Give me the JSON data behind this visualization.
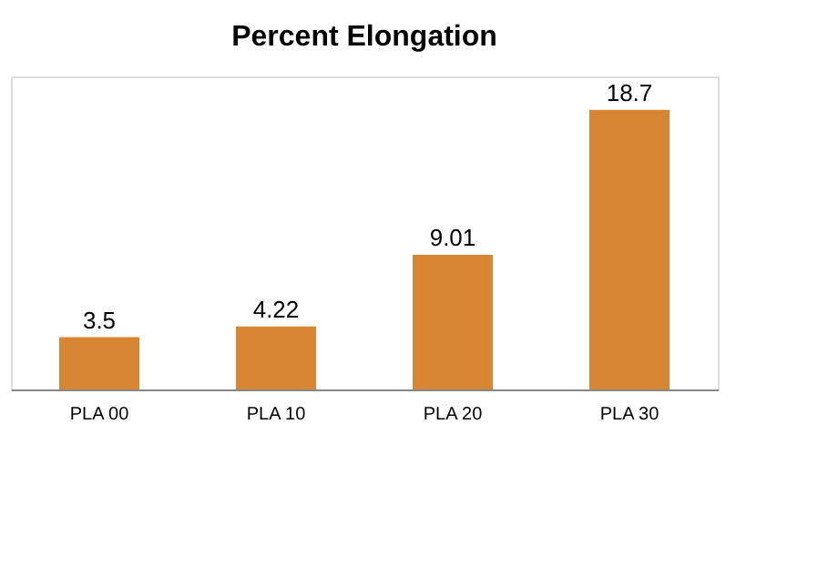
{
  "chart_data": {
    "type": "bar",
    "title": "Percent Elongation",
    "categories": [
      "PLA 00",
      "PLA 10",
      "PLA 20",
      "PLA 30"
    ],
    "values": [
      3.5,
      4.22,
      9.01,
      18.7
    ],
    "color": "#d98634",
    "data_labels": true
  }
}
